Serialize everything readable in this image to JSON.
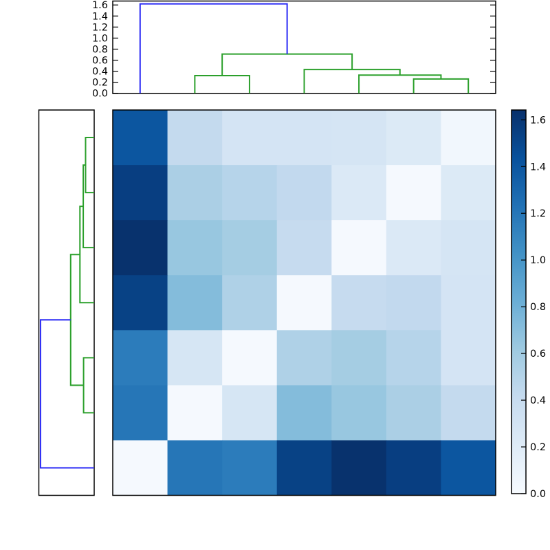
{
  "figure": {
    "background": "#ffffff",
    "frame_color": "#000000",
    "link_green": "#2ca02c",
    "link_blue": "#2b2bf5"
  },
  "chart_data": {
    "type": "heatmap",
    "title": "",
    "xlabel": "",
    "ylabel": "",
    "rows": 7,
    "cols": 7,
    "vmin": 0.0,
    "vmax": 1.64,
    "colormap": "Blues",
    "colormap_anchors": [
      "#f7fbff",
      "#deebf7",
      "#c6dbef",
      "#9ecae1",
      "#6baed6",
      "#4292c6",
      "#2171b5",
      "#08519c",
      "#08306b"
    ],
    "matrix": [
      [
        1.4,
        0.42,
        0.29,
        0.29,
        0.28,
        0.22,
        0.05
      ],
      [
        1.55,
        0.55,
        0.49,
        0.43,
        0.23,
        0.02,
        0.22
      ],
      [
        1.63,
        0.64,
        0.58,
        0.41,
        0.02,
        0.23,
        0.28
      ],
      [
        1.53,
        0.72,
        0.53,
        0.02,
        0.41,
        0.43,
        0.29
      ],
      [
        1.16,
        0.27,
        0.02,
        0.53,
        0.58,
        0.49,
        0.29
      ],
      [
        1.2,
        0.02,
        0.27,
        0.72,
        0.64,
        0.55,
        0.42
      ],
      [
        0.02,
        1.2,
        1.16,
        1.53,
        1.63,
        1.55,
        1.4
      ]
    ],
    "top_dendrogram": {
      "orientation": "top",
      "axis_max": 1.68,
      "tick_step": 0.2,
      "tick_labels": [
        "0.0",
        "0.2",
        "0.4",
        "0.6",
        "0.8",
        "1.0",
        "1.2",
        "1.4",
        "1.6"
      ],
      "links": [
        {
          "a": [
            6,
            0
          ],
          "b": [
            7,
            0
          ],
          "h": 0.26,
          "color": "green"
        },
        {
          "a": [
            5,
            0
          ],
          "b": [
            6.5,
            0.26
          ],
          "h": 0.33,
          "color": "green"
        },
        {
          "a": [
            4,
            0
          ],
          "b": [
            5.75,
            0.33
          ],
          "h": 0.43,
          "color": "green"
        },
        {
          "a": [
            2,
            0
          ],
          "b": [
            3,
            0
          ],
          "h": 0.32,
          "color": "green"
        },
        {
          "a": [
            2.5,
            0.32
          ],
          "b": [
            4.875,
            0.43
          ],
          "h": 0.71,
          "color": "green"
        },
        {
          "a": [
            1,
            0
          ],
          "b": [
            3.6875,
            0.71
          ],
          "h": 1.62,
          "color": "blue"
        }
      ]
    },
    "left_dendrogram": {
      "orientation": "left",
      "axis_max": 1.68,
      "links": [
        {
          "a": [
            1,
            0
          ],
          "b": [
            2,
            0
          ],
          "h": 0.26,
          "color": "green"
        },
        {
          "a": [
            1.5,
            0.26
          ],
          "b": [
            3,
            0
          ],
          "h": 0.33,
          "color": "green"
        },
        {
          "a": [
            2.25,
            0.33
          ],
          "b": [
            4,
            0
          ],
          "h": 0.43,
          "color": "green"
        },
        {
          "a": [
            5,
            0
          ],
          "b": [
            6,
            0
          ],
          "h": 0.32,
          "color": "green"
        },
        {
          "a": [
            3.125,
            0.43
          ],
          "b": [
            5.5,
            0.32
          ],
          "h": 0.71,
          "color": "green"
        },
        {
          "a": [
            4.3125,
            0.71
          ],
          "b": [
            7,
            0
          ],
          "h": 1.62,
          "color": "blue"
        }
      ]
    },
    "colorbar": {
      "position": "right",
      "tick_labels": [
        "0.0",
        "0.2",
        "0.4",
        "0.6",
        "0.8",
        "1.0",
        "1.2",
        "1.4",
        "1.6"
      ]
    }
  }
}
